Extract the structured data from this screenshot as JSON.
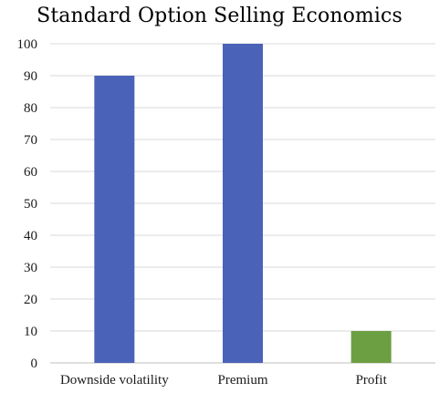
{
  "chart_data": {
    "type": "bar",
    "title": "Standard Option Selling Economics",
    "xlabel": "",
    "ylabel": "",
    "categories": [
      "Downside volatility",
      "Premium",
      "Profit"
    ],
    "values": [
      90,
      100,
      10
    ],
    "bar_colors": [
      "#4a62b8",
      "#4a62b8",
      "#6c9f41"
    ],
    "ylim": [
      0,
      100
    ],
    "yticks": [
      0,
      10,
      20,
      30,
      40,
      50,
      60,
      70,
      80,
      90,
      100
    ],
    "grid": true,
    "legend": "none"
  },
  "colors": {
    "gridline": "#d9d9d9",
    "baseline": "#bfbfbf"
  }
}
